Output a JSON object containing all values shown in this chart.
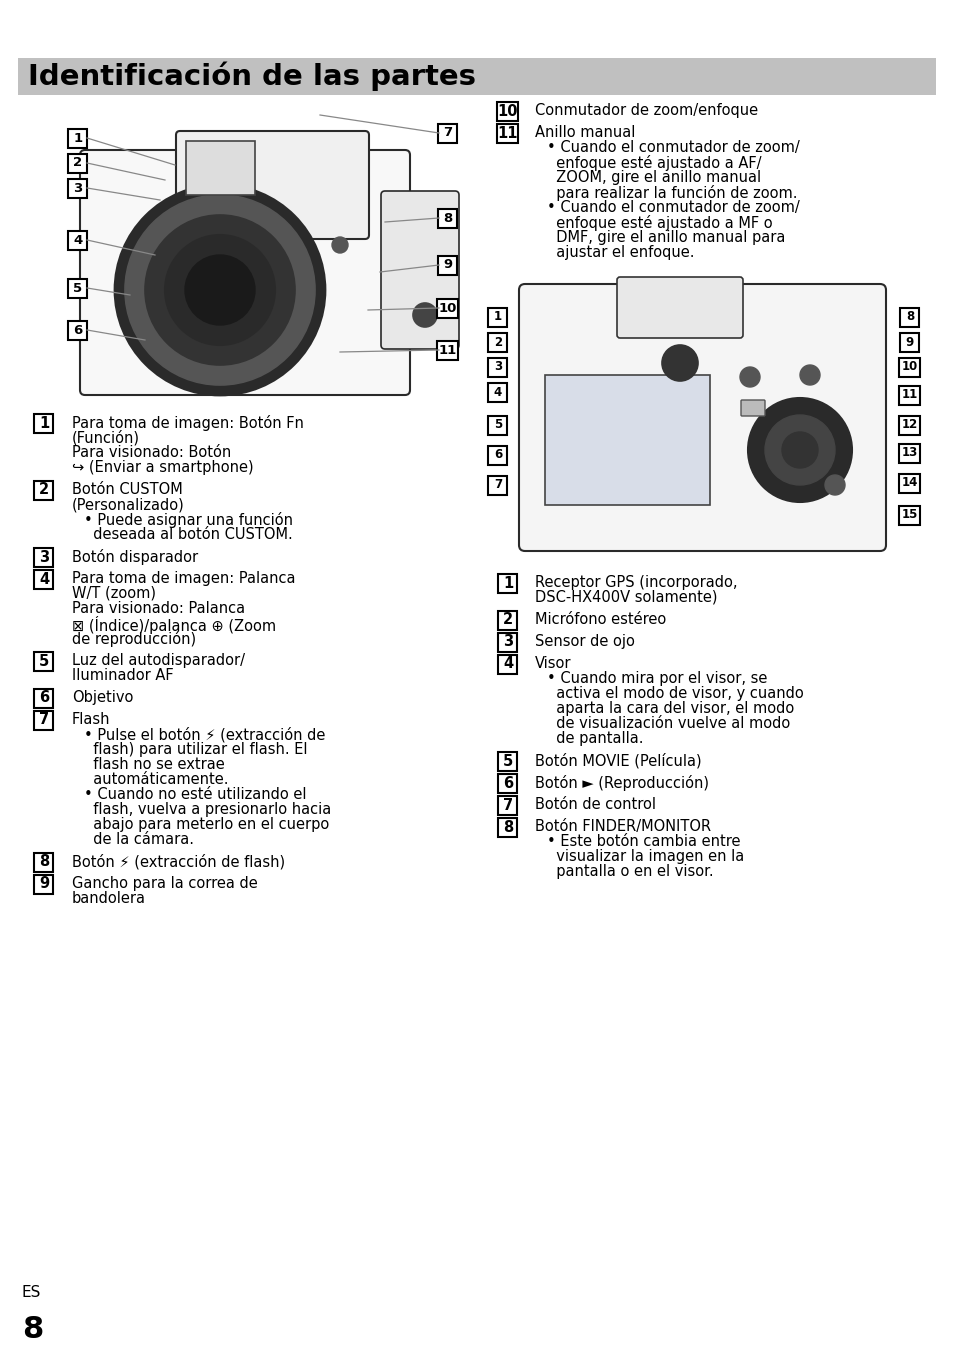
{
  "title": "Identificación de las partes",
  "title_bg": "#c0c0c0",
  "bg_color": "#ffffff",
  "body_fs": 10.5,
  "num_fs": 10.5,
  "lh": 15.0,
  "left_col_items": [
    {
      "num": "1",
      "lines": [
        "Para toma de imagen: Botón Fn",
        "(Función)",
        "Para visionado: Botón",
        "↪ (Enviar a smartphone)"
      ]
    },
    {
      "num": "2",
      "lines": [
        "Botón CUSTOM",
        "(Personalizado)",
        "• Puede asignar una función",
        "  deseada al botón CUSTOM."
      ]
    },
    {
      "num": "3",
      "lines": [
        "Botón disparador"
      ]
    },
    {
      "num": "4",
      "lines": [
        "Para toma de imagen: Palanca",
        "W/T (zoom)",
        "Para visionado: Palanca",
        "⊠ (Índice)/palanca ⊕ (Zoom",
        "de reproducción)"
      ]
    },
    {
      "num": "5",
      "lines": [
        "Luz del autodisparador/",
        "Iluminador AF"
      ]
    },
    {
      "num": "6",
      "lines": [
        "Objetivo"
      ]
    },
    {
      "num": "7",
      "lines": [
        "Flash",
        "• Pulse el botón ⚡ (extracción de",
        "  flash) para utilizar el flash. El",
        "  flash no se extrae",
        "  automáticamente.",
        "• Cuando no esté utilizando el",
        "  flash, vuelva a presionarlo hacia",
        "  abajo para meterlo en el cuerpo",
        "  de la cámara."
      ]
    },
    {
      "num": "8",
      "lines": [
        "Botón ⚡ (extracción de flash)"
      ]
    },
    {
      "num": "9",
      "lines": [
        "Gancho para la correa de",
        "bandolera"
      ]
    }
  ],
  "right_top_items": [
    {
      "num": "10",
      "lines": [
        "Conmutador de zoom/enfoque"
      ]
    },
    {
      "num": "11",
      "lines": [
        "Anillo manual",
        "• Cuando el conmutador de zoom/",
        "  enfoque esté ajustado a AF/",
        "  ZOOM, gire el anillo manual",
        "  para realizar la función de zoom.",
        "• Cuando el conmutador de zoom/",
        "  enfoque esté ajustado a MF o",
        "  DMF, gire el anillo manual para",
        "  ajustar el enfoque."
      ]
    }
  ],
  "right_bot_items": [
    {
      "num": "1",
      "lines": [
        "Receptor GPS (incorporado,",
        "DSC-HX400V solamente)"
      ]
    },
    {
      "num": "2",
      "lines": [
        "Micrófono estéreo"
      ]
    },
    {
      "num": "3",
      "lines": [
        "Sensor de ojo"
      ]
    },
    {
      "num": "4",
      "lines": [
        "Visor",
        "• Cuando mira por el visor, se",
        "  activa el modo de visor, y cuando",
        "  aparta la cara del visor, el modo",
        "  de visualización vuelve al modo",
        "  de pantalla."
      ]
    },
    {
      "num": "5",
      "lines": [
        "Botón MOVIE (Película)"
      ]
    },
    {
      "num": "6",
      "lines": [
        "Botón ► (Reproducción)"
      ]
    },
    {
      "num": "7",
      "lines": [
        "Botón de control"
      ]
    },
    {
      "num": "8",
      "lines": [
        "Botón FINDER/MONITOR",
        "• Este botón cambia entre",
        "  visualizar la imagen en la",
        "  pantalla o en el visor."
      ]
    }
  ],
  "footer_es": "ES",
  "footer_num": "8"
}
